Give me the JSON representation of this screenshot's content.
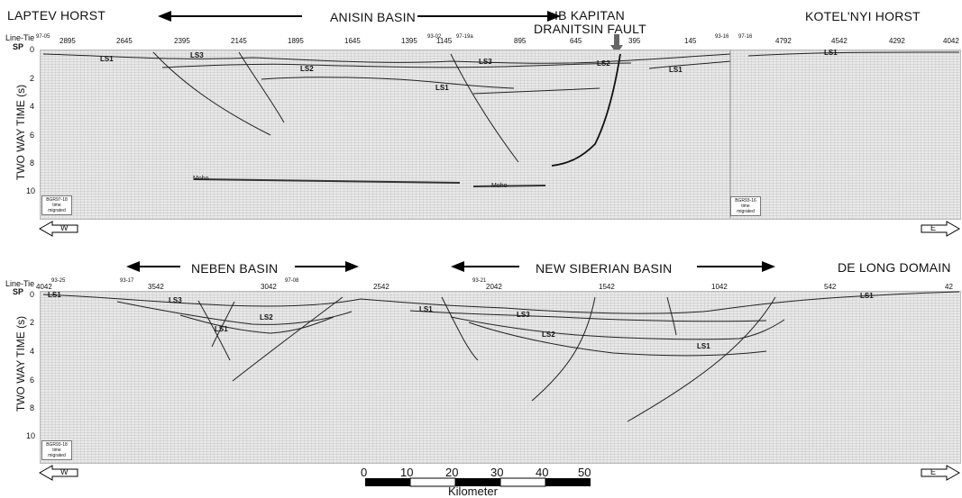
{
  "top": {
    "regions": {
      "left": "LAPTEV HORST",
      "center": "ANISIN BASIN",
      "fault1": "IB KAPITAN",
      "fault2": "DRANITSIN FAULT",
      "right": "KOTEL'NYI HORST"
    },
    "line_tie_label": "Line-Tie",
    "sp_label": "SP",
    "ties": [
      "97-05",
      "93-02",
      "97-19a",
      "93-16",
      "97-16"
    ],
    "sp_values": [
      "2895",
      "2645",
      "2395",
      "2145",
      "1895",
      "1645",
      "1395",
      "1145",
      "895",
      "645",
      "395",
      "145",
      "4792",
      "4542",
      "4292",
      "4042"
    ],
    "y_axis_label": "TWO WAY TIME (s)",
    "y_ticks": [
      "0",
      "2",
      "4",
      "6",
      "8",
      "10"
    ],
    "layers": [
      "LS1",
      "LS3",
      "LS2",
      "LS3",
      "LS1",
      "LS2",
      "LS1",
      "LS1"
    ],
    "moho": [
      "Moho",
      "Moho"
    ],
    "box_left": "BGR97-18 time migrated",
    "box_right": "BGR93-16 time migrated",
    "dir_left": "W",
    "dir_right": "E"
  },
  "bottom": {
    "regions": {
      "left": "NEBEN  BASIN",
      "center": "NEW SIBERIAN BASIN",
      "right": "DE LONG DOMAIN"
    },
    "line_tie_label": "Line-Tie",
    "sp_label": "SP",
    "ties": [
      "93-25",
      "93-17",
      "97-08",
      "93-21"
    ],
    "sp_values": [
      "4042",
      "3542",
      "3042",
      "2542",
      "2042",
      "1542",
      "1042",
      "542",
      "42"
    ],
    "y_axis_label": "TWO WAY TIME (s)",
    "y_ticks": [
      "0",
      "2",
      "4",
      "6",
      "8",
      "10"
    ],
    "layers": [
      "LS1",
      "LS3",
      "LS2",
      "LS1",
      "LS1",
      "LS3",
      "LS2",
      "LS1",
      "LS1"
    ],
    "box_left": "BGR93-18 time migrated",
    "dir_left": "W",
    "dir_right": "E"
  },
  "scalebar": {
    "ticks": [
      "0",
      "10",
      "20",
      "30",
      "40",
      "50"
    ],
    "unit": "Kilometer"
  }
}
